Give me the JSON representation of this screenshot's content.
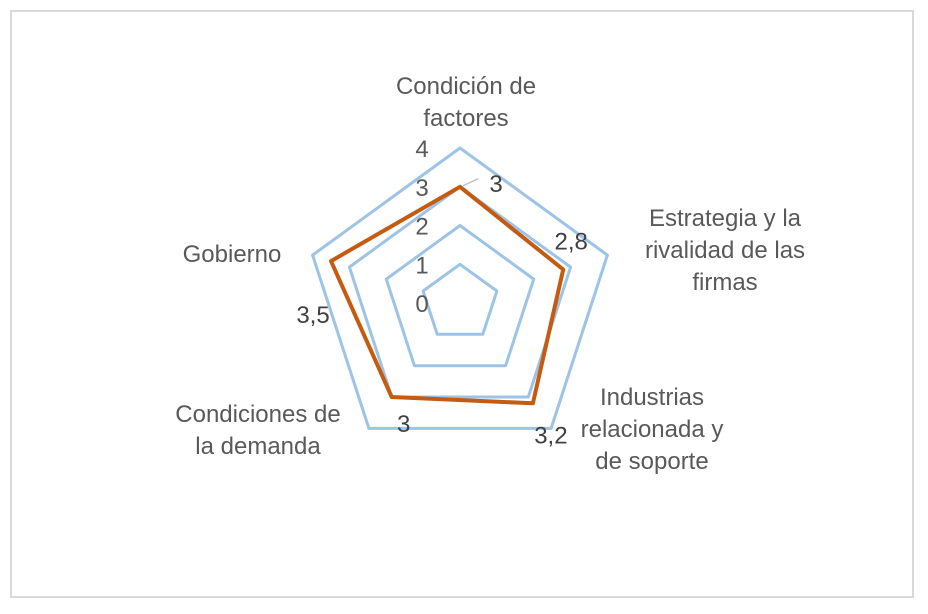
{
  "chart_data": {
    "type": "radar",
    "title": "",
    "categories": [
      "Condición de factores",
      "Estrategia y la rivalidad de las firmas",
      "Industrias relacionada y de soporte",
      "Condiciones de la demanda",
      "Gobierno"
    ],
    "category_lines": [
      [
        "Condición de",
        "factores"
      ],
      [
        "Estrategia y la",
        "rivalidad de las",
        "firmas"
      ],
      [
        "Industrias",
        "relacionada y",
        "de soporte"
      ],
      [
        "Condiciones de",
        "la demanda"
      ],
      [
        "Gobierno"
      ]
    ],
    "series": [
      {
        "values": [
          3,
          2.8,
          3.2,
          3,
          3.5
        ],
        "value_labels": [
          "3",
          "2,8",
          "3,2",
          "3",
          "3,5"
        ],
        "color": "#c55a11"
      }
    ],
    "axis_range": [
      0,
      4
    ],
    "ticks": [
      0,
      1,
      2,
      3,
      4
    ],
    "tick_labels": [
      "0",
      "1",
      "2",
      "3",
      "4"
    ],
    "grid_color": "#9dc3e6",
    "legend": "none"
  }
}
